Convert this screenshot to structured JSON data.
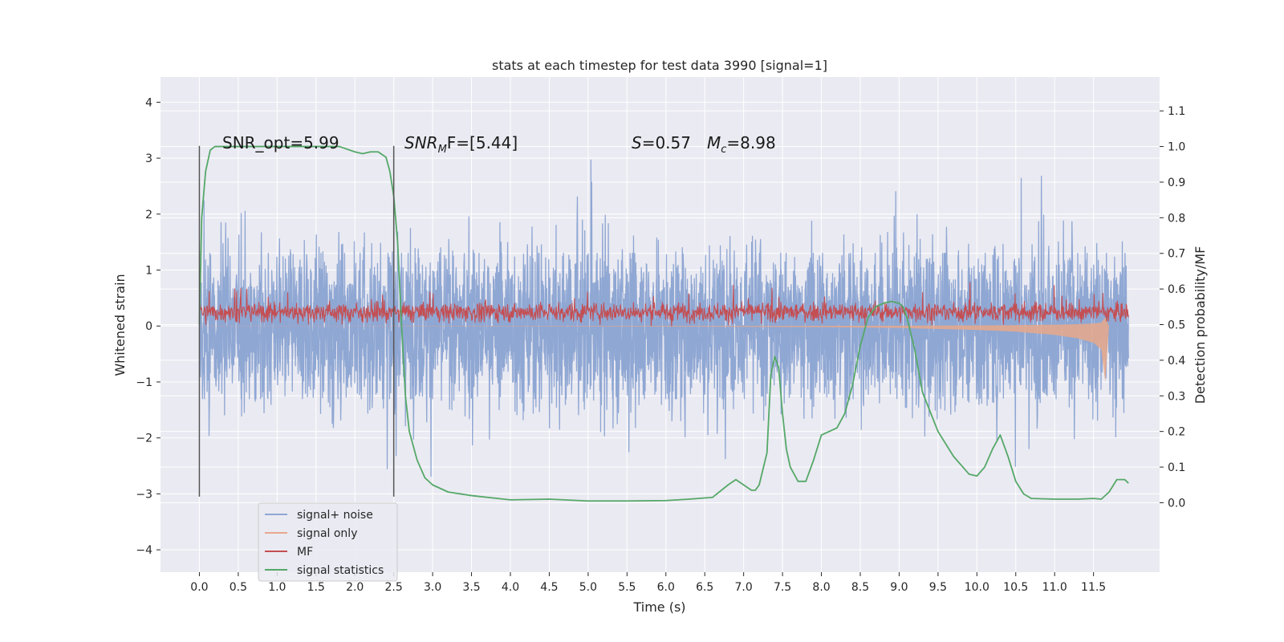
{
  "chart_data": {
    "type": "line",
    "title": "stats at each timestep for test data 3990 [signal=1]",
    "xlabel": "Time (s)",
    "ylabel": "Whitened strain",
    "ylabel_right": "Detection probability/MF",
    "xlim": [
      -0.5,
      12.35
    ],
    "ylim": [
      -4.4,
      4.45
    ],
    "ylim_right": [
      -0.195,
      1.195
    ],
    "x_ticks": [
      0.0,
      0.5,
      1.0,
      1.5,
      2.0,
      2.5,
      3.0,
      3.5,
      4.0,
      4.5,
      5.0,
      5.5,
      6.0,
      6.5,
      7.0,
      7.5,
      8.0,
      8.5,
      9.0,
      9.5,
      10.0,
      10.5,
      11.0,
      11.5
    ],
    "x_tick_labels": [
      "0.0",
      "0.5",
      "1.0",
      "1.5",
      "2.0",
      "2.5",
      "3.0",
      "3.5",
      "4.0",
      "4.5",
      "5.0",
      "5.5",
      "6.0",
      "6.5",
      "7.0",
      "7.5",
      "8.0",
      "8.5",
      "9.0",
      "9.5",
      "10.0",
      "10.5",
      "11.0",
      "11.5"
    ],
    "y_ticks": [
      -4,
      -3,
      -2,
      -1,
      0,
      1,
      2,
      3,
      4
    ],
    "y_tick_labels": [
      "−4",
      "−3",
      "−2",
      "−1",
      "0",
      "1",
      "2",
      "3",
      "4"
    ],
    "y_right_ticks": [
      0.0,
      0.1,
      0.2,
      0.3,
      0.4,
      0.5,
      0.6,
      0.7,
      0.8,
      0.9,
      1.0,
      1.1
    ],
    "y_right_tick_labels": [
      "0.0",
      "0.1",
      "0.2",
      "0.3",
      "0.4",
      "0.5",
      "0.6",
      "0.7",
      "0.8",
      "0.9",
      "1.0",
      "1.1"
    ],
    "grid": true,
    "legend_position": "bottom-left",
    "vertical_lines_x": [
      0.0,
      2.5
    ],
    "annotations": {
      "snr_opt": "SNR_opt=5.99",
      "snr_mf_name": "SNR",
      "snr_mf_sub": "M",
      "snr_mf_tail": "F=[5.44]",
      "s_name": "S",
      "s_value": "=0.57",
      "mc_name": "M",
      "mc_sub": "c",
      "mc_value": "=8.98"
    },
    "series": [
      {
        "name": "signal+ noise",
        "axis": "left",
        "color": "#8fa7d3",
        "style": "dense noise, roughly within ±2 with peaks to about ±3.8",
        "x_range": [
          0.0,
          11.95
        ],
        "envelope_min": -3.9,
        "envelope_max": 4.1
      },
      {
        "name": "signal only",
        "axis": "left",
        "color": "#e8a88a",
        "x": [
          0.0,
          2.0,
          4.0,
          6.0,
          7.0,
          8.0,
          9.0,
          10.0,
          10.5,
          11.0,
          11.3,
          11.5,
          11.6,
          11.65,
          11.7
        ],
        "envelope": [
          0.003,
          0.004,
          0.006,
          0.01,
          0.014,
          0.02,
          0.035,
          0.07,
          0.1,
          0.16,
          0.22,
          0.3,
          0.42,
          1.0,
          0.0
        ]
      },
      {
        "name": "MF",
        "axis": "left",
        "color": "#c44e52",
        "style": "noise band centred near 0.25, mostly between 0.05 and 0.55, peaks to about 0.9",
        "x_range": [
          0.0,
          11.95
        ],
        "center": 0.25
      },
      {
        "name": "signal statistics",
        "axis": "right",
        "color": "#55a868",
        "x": [
          0.0,
          0.03,
          0.08,
          0.14,
          0.2,
          0.3,
          0.5,
          1.0,
          1.5,
          1.8,
          2.0,
          2.1,
          2.2,
          2.3,
          2.4,
          2.45,
          2.5,
          2.55,
          2.6,
          2.65,
          2.7,
          2.8,
          2.9,
          3.0,
          3.2,
          3.5,
          4.0,
          4.5,
          5.0,
          5.5,
          6.0,
          6.3,
          6.6,
          6.8,
          6.9,
          7.0,
          7.1,
          7.15,
          7.2,
          7.3,
          7.35,
          7.4,
          7.45,
          7.5,
          7.55,
          7.6,
          7.7,
          7.8,
          7.9,
          8.0,
          8.1,
          8.2,
          8.3,
          8.4,
          8.5,
          8.6,
          8.7,
          8.8,
          8.9,
          9.0,
          9.05,
          9.1,
          9.2,
          9.3,
          9.5,
          9.7,
          9.9,
          10.0,
          10.1,
          10.2,
          10.3,
          10.4,
          10.5,
          10.6,
          10.7,
          11.0,
          11.3,
          11.5,
          11.6,
          11.7,
          11.8,
          11.9,
          11.95
        ],
        "y": [
          0.5,
          0.8,
          0.93,
          0.99,
          1.0,
          1.0,
          1.0,
          1.0,
          1.0,
          1.0,
          0.985,
          0.98,
          0.985,
          0.985,
          0.97,
          0.93,
          0.86,
          0.73,
          0.5,
          0.3,
          0.2,
          0.12,
          0.07,
          0.05,
          0.03,
          0.02,
          0.008,
          0.01,
          0.005,
          0.005,
          0.006,
          0.01,
          0.015,
          0.05,
          0.065,
          0.05,
          0.035,
          0.035,
          0.05,
          0.14,
          0.36,
          0.41,
          0.38,
          0.25,
          0.15,
          0.1,
          0.06,
          0.06,
          0.12,
          0.19,
          0.2,
          0.21,
          0.25,
          0.33,
          0.44,
          0.52,
          0.55,
          0.56,
          0.565,
          0.56,
          0.55,
          0.52,
          0.43,
          0.31,
          0.2,
          0.13,
          0.08,
          0.075,
          0.1,
          0.15,
          0.19,
          0.13,
          0.06,
          0.025,
          0.012,
          0.01,
          0.01,
          0.012,
          0.01,
          0.03,
          0.065,
          0.065,
          0.055
        ]
      }
    ]
  }
}
